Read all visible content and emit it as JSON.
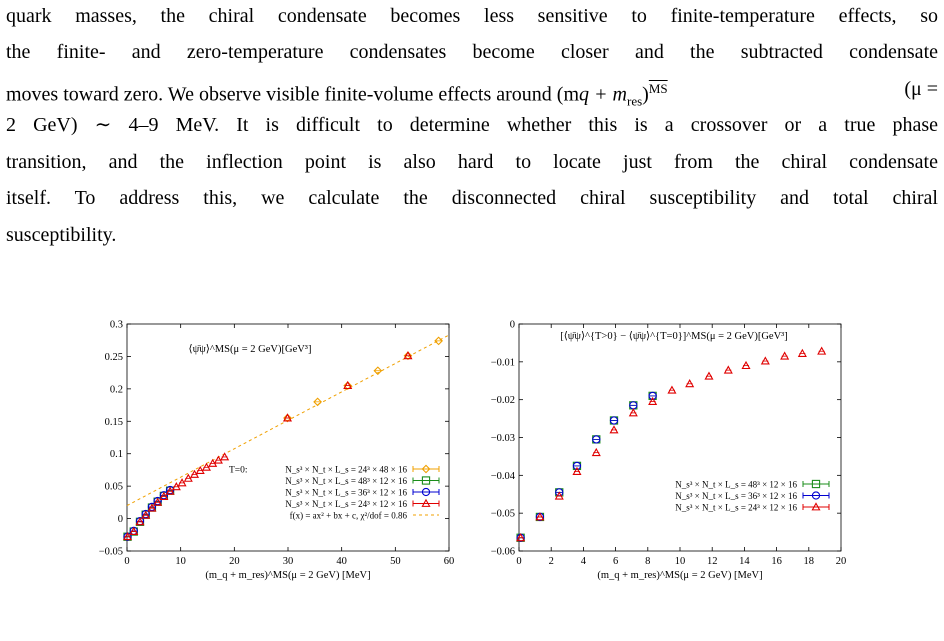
{
  "paragraph": {
    "lines": [
      "quark masses, the chiral condensate becomes less sensitive to finite-temperature effects, so",
      "the finite- and zero-temperature condensates become closer and the subtracted condensate",
      "moves toward zero.  We observe visible finite-volume effects around (m",
      "2 GeV) ∼ 4–9 MeV. It is difficult to determine whether this is a crossover or a true phase",
      "transition, and the inflection point is also hard to locate just from the chiral condensate",
      "itself.  To address this, we calculate the disconnected chiral susceptibility and total chiral",
      "susceptibility."
    ],
    "line3_math": "q + m",
    "line3_sub": "res",
    "line3_tail": ")",
    "line3_sup": "MS",
    "line3_end": "(μ ="
  },
  "chart_data": [
    {
      "type": "scatter",
      "title": "⟨ψ̄ψ⟩^MS(μ = 2 GeV)[GeV³]",
      "xlabel": "(m_q + m_res)^MS(μ = 2 GeV) [MeV]",
      "ylabel": "",
      "xlim": [
        0,
        62
      ],
      "ylim": [
        -0.05,
        0.3
      ],
      "xticks": [
        "0",
        "10",
        "20",
        "30",
        "40",
        "50",
        "60"
      ],
      "yticks": [
        "−0.05",
        "0",
        "0.05",
        "0.1",
        "0.15",
        "0.2",
        "0.25",
        "0.3"
      ],
      "legend_placement": "bottom-right",
      "legend_prefix": "T=0:",
      "series": [
        {
          "name": "N_s³ × N_t × L_s = 24³ × 48 × 16",
          "color": "#f0a000",
          "marker": "diamond",
          "x": [
            30.9,
            36.7,
            42.5,
            48.3,
            54.1,
            60.0
          ],
          "y": [
            0.155,
            0.18,
            0.205,
            0.228,
            0.251,
            0.274
          ]
        },
        {
          "name": "N_s³ × N_t × L_s = 48³ × 12 × 16",
          "color": "#1a8c1a",
          "marker": "square",
          "x": [
            0.1,
            1.3,
            2.5,
            3.6,
            4.8,
            5.9,
            7.1,
            8.3
          ],
          "y": [
            -0.028,
            -0.02,
            -0.005,
            0.006,
            0.017,
            0.026,
            0.035,
            0.043
          ]
        },
        {
          "name": "N_s³ × N_t × L_s = 36³ × 12 × 16",
          "color": "#0000d0",
          "marker": "circle",
          "x": [
            0.1,
            1.3,
            2.5,
            3.6,
            4.8,
            5.9,
            7.1,
            8.3
          ],
          "y": [
            -0.028,
            -0.019,
            -0.004,
            0.007,
            0.018,
            0.027,
            0.036,
            0.044
          ]
        },
        {
          "name": "N_s³ × N_t × L_s = 24³ × 12 × 16",
          "color": "#e00000",
          "marker": "triangle",
          "x": [
            0.1,
            1.3,
            2.5,
            3.6,
            4.8,
            5.9,
            7.1,
            8.3,
            9.5,
            10.6,
            11.8,
            13.0,
            14.1,
            15.3,
            16.5,
            17.6,
            18.8,
            30.9,
            42.5,
            54.1
          ],
          "y": [
            -0.028,
            -0.02,
            -0.005,
            0.005,
            0.016,
            0.025,
            0.034,
            0.042,
            0.049,
            0.055,
            0.062,
            0.068,
            0.074,
            0.079,
            0.085,
            0.09,
            0.095,
            0.155,
            0.205,
            0.251
          ]
        }
      ],
      "fit": {
        "name": "f(x) = ax² + bx + c, χ²/dof = 0.86",
        "color": "#f0a000",
        "x": [
          0,
          62
        ],
        "y": [
          0.02,
          0.283
        ]
      }
    },
    {
      "type": "scatter",
      "title": "[⟨ψ̄ψ⟩^{T>0} − ⟨ψ̄ψ⟩^{T=0}]^MS(μ = 2 GeV)[GeV³]",
      "xlabel": "(m_q + m_res)^MS(μ = 2 GeV) [MeV]",
      "ylabel": "",
      "xlim": [
        0,
        20
      ],
      "ylim": [
        -0.06,
        0
      ],
      "xticks": [
        "0",
        "2",
        "4",
        "6",
        "8",
        "10",
        "12",
        "14",
        "16",
        "18",
        "20"
      ],
      "yticks": [
        "−0.06",
        "−0.05",
        "−0.04",
        "−0.03",
        "−0.02",
        "−0.01",
        "0"
      ],
      "legend_placement": "bottom-right",
      "series": [
        {
          "name": "N_s³ × N_t × L_s = 48³ × 12 × 16",
          "color": "#1a8c1a",
          "marker": "square",
          "x": [
            0.1,
            1.3,
            2.5,
            3.6,
            4.8,
            5.9,
            7.1,
            8.3
          ],
          "y": [
            -0.0565,
            -0.051,
            -0.0445,
            -0.0375,
            -0.0305,
            -0.0255,
            -0.0215,
            -0.019
          ]
        },
        {
          "name": "N_s³ × N_t × L_s = 36³ × 12 × 16",
          "color": "#0000d0",
          "marker": "circle",
          "x": [
            0.1,
            1.3,
            2.5,
            3.6,
            4.8,
            5.9,
            7.1,
            8.3
          ],
          "y": [
            -0.0565,
            -0.051,
            -0.0445,
            -0.0375,
            -0.0305,
            -0.0255,
            -0.0215,
            -0.019
          ]
        },
        {
          "name": "N_s³ × N_t × L_s = 24³ × 12 × 16",
          "color": "#e00000",
          "marker": "triangle",
          "x": [
            0.1,
            1.3,
            2.5,
            3.6,
            4.8,
            5.9,
            7.1,
            8.3,
            9.5,
            10.6,
            11.8,
            13.0,
            14.1,
            15.3,
            16.5,
            17.6,
            18.8
          ],
          "y": [
            -0.0565,
            -0.051,
            -0.0455,
            -0.039,
            -0.034,
            -0.028,
            -0.0235,
            -0.0205,
            -0.0175,
            -0.0158,
            -0.0138,
            -0.0122,
            -0.011,
            -0.0098,
            -0.0085,
            -0.0078,
            -0.0072
          ]
        }
      ]
    }
  ],
  "figure_cut_text": "……"
}
